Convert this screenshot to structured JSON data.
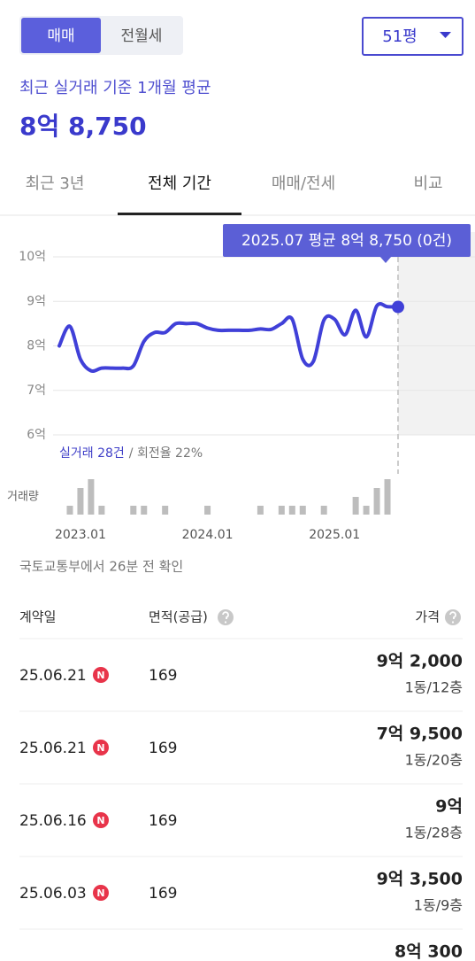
{
  "toggle": {
    "options": [
      "매매",
      "전월세"
    ],
    "active": 0
  },
  "dropdown": "51평",
  "subtitle": "최근 실거래 기준 1개월 평균",
  "price": "8억 8,750",
  "tabs": {
    "items": [
      "최근 3년",
      "전체 기간",
      "매매/전세",
      "비교"
    ],
    "active": 1
  },
  "chart_data": {
    "type": "line",
    "tooltip": "2025.07 평균 8억 8,750 (0건)",
    "categories": [
      null,
      null,
      "2023.01",
      null,
      null,
      null,
      null,
      null,
      null,
      null,
      null,
      null,
      null,
      null,
      "2024.01",
      null,
      null,
      null,
      null,
      null,
      null,
      null,
      null,
      null,
      null,
      null,
      "2025.01",
      null,
      null,
      null,
      null,
      null,
      null
    ],
    "values": [
      8.0,
      8.44,
      7.7,
      7.44,
      7.5,
      7.5,
      7.5,
      7.55,
      8.1,
      8.3,
      8.3,
      8.5,
      8.5,
      8.5,
      8.4,
      8.35,
      8.35,
      8.35,
      8.35,
      8.38,
      8.37,
      8.5,
      8.6,
      7.7,
      7.65,
      8.58,
      8.6,
      8.25,
      8.8,
      8.2,
      8.9,
      8.88,
      8.875
    ],
    "color": "#4040d8",
    "ylim": [
      6,
      10
    ],
    "yticks": [
      {
        "value": 6,
        "label": "6억"
      },
      {
        "value": 7,
        "label": "7억"
      },
      {
        "value": 8,
        "label": "8억"
      },
      {
        "value": 9,
        "label": "9억"
      },
      {
        "value": 10,
        "label": "10억"
      }
    ],
    "grid": true,
    "deals_label": "실거래 28건",
    "turnover_label": "/ 회전율 22%",
    "volume": {
      "label": "거래량",
      "color": "#bdbdbd",
      "values": [
        0,
        1,
        3,
        4,
        1,
        0,
        0,
        1,
        1,
        0,
        1,
        0,
        0,
        0,
        1,
        0,
        0,
        0,
        0,
        1,
        0,
        1,
        1,
        1,
        0,
        1,
        0,
        0,
        2,
        1,
        3,
        4,
        0
      ]
    }
  },
  "source": "국토교통부에서 26분 전 확인",
  "table": {
    "headers": [
      "계약일",
      "면적(공급)",
      "가격"
    ],
    "rows": [
      {
        "date": "25.06.21",
        "badge": "N",
        "area": "169",
        "price": "9억 2,000",
        "floor": "1동/12층"
      },
      {
        "date": "25.06.21",
        "badge": "N",
        "area": "169",
        "price": "7억 9,500",
        "floor": "1동/20층"
      },
      {
        "date": "25.06.16",
        "badge": "N",
        "area": "169",
        "price": "9억",
        "floor": "1동/28층"
      },
      {
        "date": "25.06.03",
        "badge": "N",
        "area": "169",
        "price": "9억 3,500",
        "floor": "1동/9층"
      },
      {
        "price": "8억 300"
      }
    ]
  }
}
